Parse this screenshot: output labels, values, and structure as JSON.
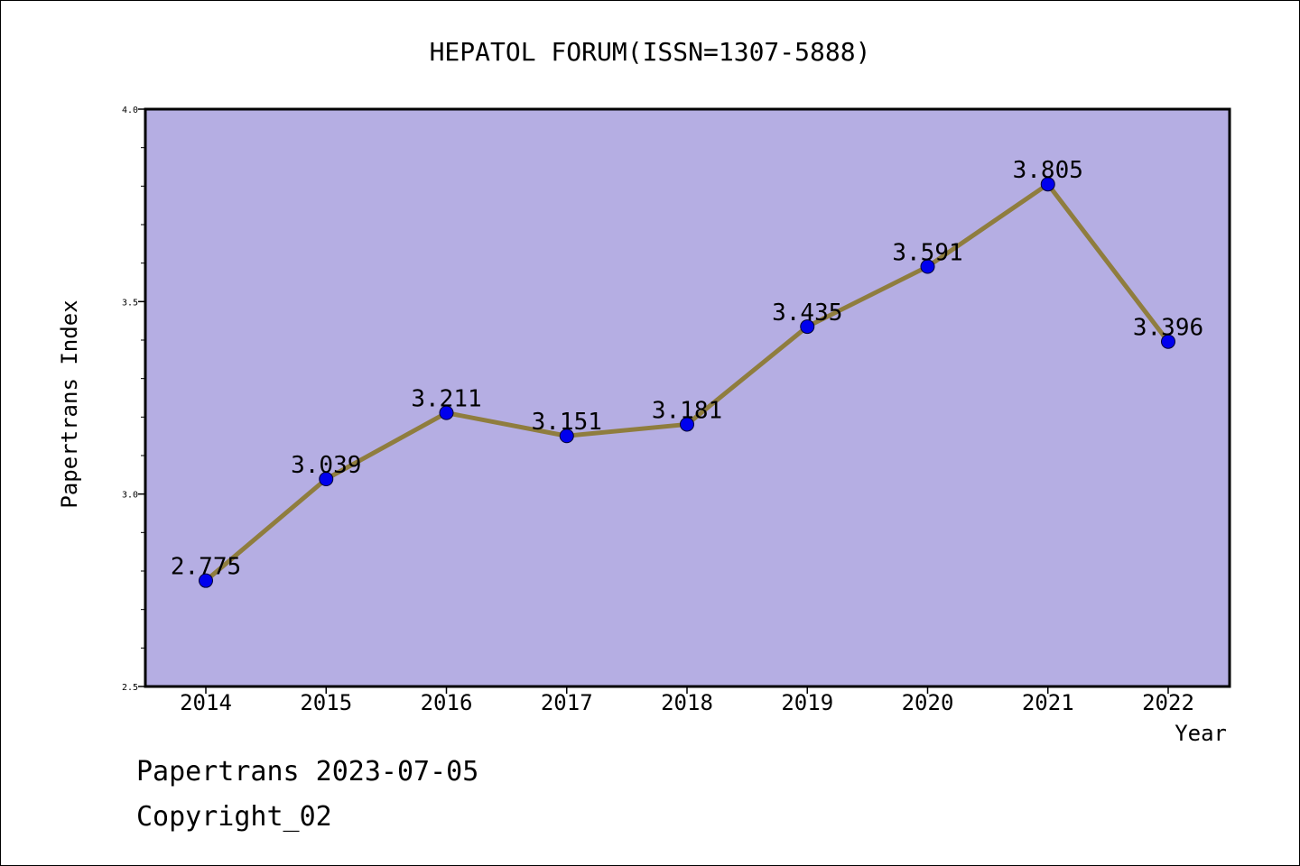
{
  "chart_data": {
    "type": "line",
    "title": "HEPATOL FORUM(ISSN=1307-5888)",
    "xlabel": "Year",
    "ylabel": "Papertrans Index",
    "x": [
      "2014",
      "2015",
      "2016",
      "2017",
      "2018",
      "2019",
      "2020",
      "2021",
      "2022"
    ],
    "values": [
      2.775,
      3.039,
      3.211,
      3.151,
      3.181,
      3.435,
      3.591,
      3.805,
      3.396
    ],
    "labels": [
      "2.775",
      "3.039",
      "3.211",
      "3.151",
      "3.181",
      "3.435",
      "3.591",
      "3.805",
      "3.396"
    ],
    "ylim": [
      2.5,
      4.0
    ],
    "yticks": [
      "2.5",
      "3.0",
      "3.5",
      "4.0"
    ],
    "grid": false,
    "colors": {
      "plot_background": "#b5aee3",
      "line": "#8f7d3e",
      "marker": "#0000ee"
    }
  },
  "footer": {
    "line1": "Papertrans 2023-07-05",
    "line2": "Copyright_02"
  }
}
